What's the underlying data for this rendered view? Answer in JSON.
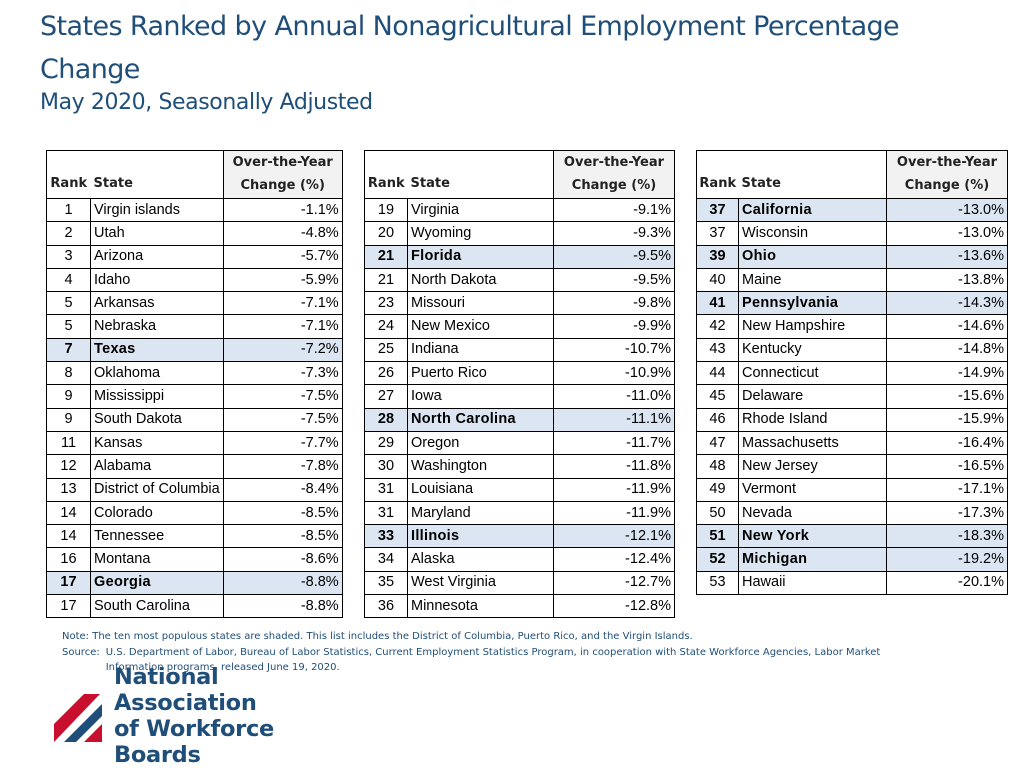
{
  "title": "States Ranked by Annual Nonagricultural Employment Percentage Change",
  "subtitle": "May 2020, Seasonally Adjusted",
  "colors": {
    "title": "#1f4e79",
    "highlight": "#dce6f2",
    "header_shade": "#f2f2f2",
    "logo_red": "#c8102e",
    "logo_blue": "#1f4e79"
  },
  "table_headers": {
    "rank": "Rank",
    "state": "State",
    "change_line1": "Over-the-Year",
    "change_line2": "Change (%)"
  },
  "tables": [
    {
      "rows": [
        {
          "rank": "1",
          "state": "Virgin islands",
          "change": "-1.1%",
          "highlight": false
        },
        {
          "rank": "2",
          "state": "Utah",
          "change": "-4.8%",
          "highlight": false
        },
        {
          "rank": "3",
          "state": "Arizona",
          "change": "-5.7%",
          "highlight": false
        },
        {
          "rank": "4",
          "state": "Idaho",
          "change": "-5.9%",
          "highlight": false
        },
        {
          "rank": "5",
          "state": "Arkansas",
          "change": "-7.1%",
          "highlight": false
        },
        {
          "rank": "5",
          "state": "Nebraska",
          "change": "-7.1%",
          "highlight": false
        },
        {
          "rank": "7",
          "state": "Texas",
          "change": "-7.2%",
          "highlight": true
        },
        {
          "rank": "8",
          "state": "Oklahoma",
          "change": "-7.3%",
          "highlight": false
        },
        {
          "rank": "9",
          "state": "Mississippi",
          "change": "-7.5%",
          "highlight": false
        },
        {
          "rank": "9",
          "state": "South Dakota",
          "change": "-7.5%",
          "highlight": false
        },
        {
          "rank": "11",
          "state": "Kansas",
          "change": "-7.7%",
          "highlight": false
        },
        {
          "rank": "12",
          "state": "Alabama",
          "change": "-7.8%",
          "highlight": false
        },
        {
          "rank": "13",
          "state": "District of Columbia",
          "change": "-8.4%",
          "highlight": false
        },
        {
          "rank": "14",
          "state": "Colorado",
          "change": "-8.5%",
          "highlight": false
        },
        {
          "rank": "14",
          "state": "Tennessee",
          "change": "-8.5%",
          "highlight": false
        },
        {
          "rank": "16",
          "state": "Montana",
          "change": "-8.6%",
          "highlight": false
        },
        {
          "rank": "17",
          "state": "Georgia",
          "change": "-8.8%",
          "highlight": true
        },
        {
          "rank": "17",
          "state": "South Carolina",
          "change": "-8.8%",
          "highlight": false
        }
      ]
    },
    {
      "rows": [
        {
          "rank": "19",
          "state": "Virginia",
          "change": "-9.1%",
          "highlight": false
        },
        {
          "rank": "20",
          "state": "Wyoming",
          "change": "-9.3%",
          "highlight": false
        },
        {
          "rank": "21",
          "state": "Florida",
          "change": "-9.5%",
          "highlight": true
        },
        {
          "rank": "21",
          "state": "North Dakota",
          "change": "-9.5%",
          "highlight": false
        },
        {
          "rank": "23",
          "state": "Missouri",
          "change": "-9.8%",
          "highlight": false
        },
        {
          "rank": "24",
          "state": "New Mexico",
          "change": "-9.9%",
          "highlight": false
        },
        {
          "rank": "25",
          "state": "Indiana",
          "change": "-10.7%",
          "highlight": false
        },
        {
          "rank": "26",
          "state": "Puerto Rico",
          "change": "-10.9%",
          "highlight": false
        },
        {
          "rank": "27",
          "state": "Iowa",
          "change": "-11.0%",
          "highlight": false
        },
        {
          "rank": "28",
          "state": "North Carolina",
          "change": "-11.1%",
          "highlight": true
        },
        {
          "rank": "29",
          "state": "Oregon",
          "change": "-11.7%",
          "highlight": false
        },
        {
          "rank": "30",
          "state": "Washington",
          "change": "-11.8%",
          "highlight": false
        },
        {
          "rank": "31",
          "state": "Louisiana",
          "change": "-11.9%",
          "highlight": false
        },
        {
          "rank": "31",
          "state": "Maryland",
          "change": "-11.9%",
          "highlight": false
        },
        {
          "rank": "33",
          "state": "Illinois",
          "change": "-12.1%",
          "highlight": true
        },
        {
          "rank": "34",
          "state": "Alaska",
          "change": "-12.4%",
          "highlight": false
        },
        {
          "rank": "35",
          "state": "West Virginia",
          "change": "-12.7%",
          "highlight": false
        },
        {
          "rank": "36",
          "state": "Minnesota",
          "change": "-12.8%",
          "highlight": false
        }
      ]
    },
    {
      "rows": [
        {
          "rank": "37",
          "state": "California",
          "change": "-13.0%",
          "highlight": true
        },
        {
          "rank": "37",
          "state": "Wisconsin",
          "change": "-13.0%",
          "highlight": false
        },
        {
          "rank": "39",
          "state": "Ohio",
          "change": "-13.6%",
          "highlight": true
        },
        {
          "rank": "40",
          "state": "Maine",
          "change": "-13.8%",
          "highlight": false
        },
        {
          "rank": "41",
          "state": "Pennsylvania",
          "change": "-14.3%",
          "highlight": true
        },
        {
          "rank": "42",
          "state": "New Hampshire",
          "change": "-14.6%",
          "highlight": false
        },
        {
          "rank": "43",
          "state": "Kentucky",
          "change": "-14.8%",
          "highlight": false
        },
        {
          "rank": "44",
          "state": "Connecticut",
          "change": "-14.9%",
          "highlight": false
        },
        {
          "rank": "45",
          "state": "Delaware",
          "change": "-15.6%",
          "highlight": false
        },
        {
          "rank": "46",
          "state": "Rhode Island",
          "change": "-15.9%",
          "highlight": false
        },
        {
          "rank": "47",
          "state": "Massachusetts",
          "change": "-16.4%",
          "highlight": false
        },
        {
          "rank": "48",
          "state": "New Jersey",
          "change": "-16.5%",
          "highlight": false
        },
        {
          "rank": "49",
          "state": "Vermont",
          "change": "-17.1%",
          "highlight": false
        },
        {
          "rank": "50",
          "state": "Nevada",
          "change": "-17.3%",
          "highlight": false
        },
        {
          "rank": "51",
          "state": "New York",
          "change": "-18.3%",
          "highlight": true
        },
        {
          "rank": "52",
          "state": "Michigan",
          "change": "-19.2%",
          "highlight": true
        },
        {
          "rank": "53",
          "state": "Hawaii",
          "change": "-20.1%",
          "highlight": false
        }
      ]
    }
  ],
  "notes": {
    "note": "Note:  The ten most populous states are shaded.  This list includes the District of Columbia, Puerto Rico, and the Virgin Islands.",
    "source_label": "Source:",
    "source_line1": "U.S. Department of Labor, Bureau of Labor Statistics, Current Employment Statistics Program, in cooperation with State Workforce Agencies, Labor Market",
    "source_line2": "Information programs, released June 19, 2020."
  },
  "logo": {
    "line1": "National Association",
    "line2": "of Workforce Boards",
    "icon": "flag-stripes-logo"
  }
}
